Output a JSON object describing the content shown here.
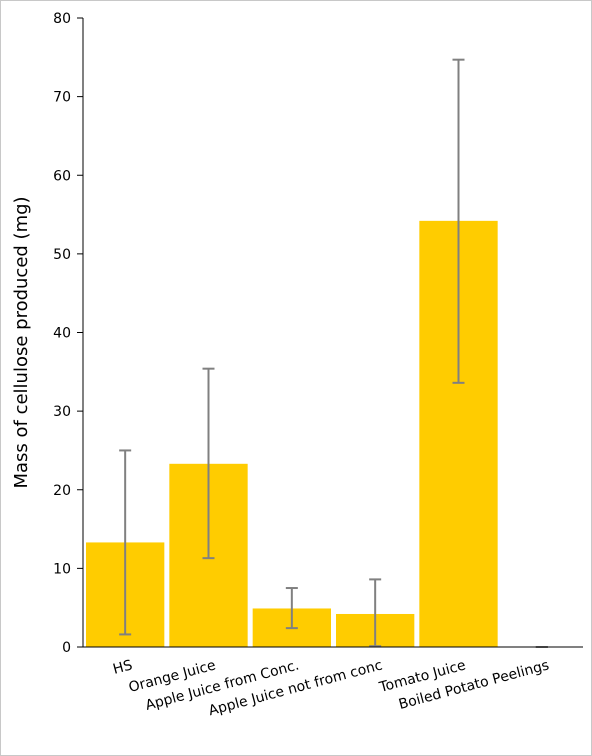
{
  "chart_data": {
    "type": "bar",
    "title": "",
    "xlabel": "",
    "ylabel": "Mass of cellulose produced (mg)",
    "ylim": [
      0,
      80
    ],
    "yticks": [
      0,
      10,
      20,
      30,
      40,
      50,
      60,
      70,
      80
    ],
    "categories": [
      "HS",
      "Orange Juice",
      "Apple Juice from Conc.",
      "Apple Juice not from conc",
      "Tomato Juice",
      "Boiled Potato Peelings"
    ],
    "values": [
      13.3,
      23.3,
      4.9,
      4.2,
      54.2,
      0.0
    ],
    "error_low": [
      1.6,
      11.3,
      2.4,
      0.1,
      33.6,
      0.0
    ],
    "error_high": [
      25.0,
      35.4,
      7.5,
      8.6,
      74.7,
      0.0
    ],
    "bar_color": "#ffcc00",
    "error_color": "#808080",
    "grid": false,
    "legend": "none"
  }
}
